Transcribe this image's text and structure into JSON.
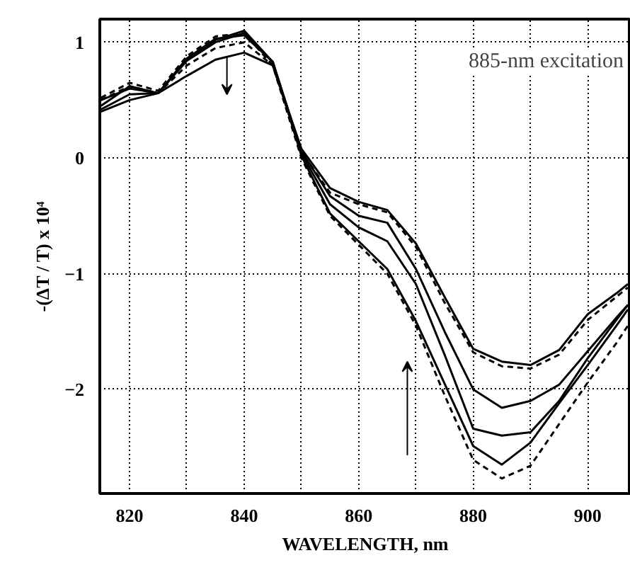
{
  "chart_data": {
    "type": "line",
    "xlabel": "WAVELENGTH, nm",
    "ylabel": "-(ΔT / T) x 10⁴",
    "annotations": [
      "885-nm excitation"
    ],
    "x": [
      815,
      820,
      825,
      830,
      835,
      840,
      845,
      850,
      855,
      860,
      865,
      870,
      875,
      880,
      885,
      890,
      895,
      900,
      905,
      907
    ],
    "series": [
      {
        "color": "#000000",
        "line_style": "solid",
        "values": [
          0.4,
          0.5,
          0.56,
          0.71,
          0.85,
          0.91,
          0.8,
          0.08,
          -0.26,
          -0.38,
          -0.45,
          -0.74,
          -1.2,
          -1.65,
          -1.76,
          -1.79,
          -1.66,
          -1.35,
          -1.17,
          -1.09
        ]
      },
      {
        "color": "#000000",
        "line_style": "solid",
        "values": [
          0.5,
          0.6,
          0.56,
          0.86,
          1.03,
          1.06,
          0.83,
          0.06,
          -0.33,
          -0.5,
          -0.56,
          -0.96,
          -1.5,
          -2.0,
          -2.16,
          -2.1,
          -1.96,
          -1.67,
          -1.38,
          -1.27
        ]
      },
      {
        "color": "#000000",
        "line_style": "solid",
        "values": [
          0.42,
          0.55,
          0.56,
          0.84,
          1.0,
          1.08,
          0.83,
          0.04,
          -0.4,
          -0.6,
          -0.72,
          -1.09,
          -1.7,
          -2.34,
          -2.4,
          -2.37,
          -2.1,
          -1.73,
          -1.4,
          -1.27
        ]
      },
      {
        "color": "#000000",
        "line_style": "solid",
        "values": [
          0.45,
          0.62,
          0.56,
          0.85,
          1.02,
          1.1,
          0.83,
          0.02,
          -0.48,
          -0.72,
          -0.96,
          -1.41,
          -1.95,
          -2.49,
          -2.65,
          -2.46,
          -2.12,
          -1.79,
          -1.45,
          -1.31
        ]
      },
      {
        "color": "#000000",
        "line_style": "dashed",
        "values": [
          0.52,
          0.65,
          0.58,
          0.88,
          1.05,
          1.08,
          0.8,
          0.0,
          -0.5,
          -0.75,
          -1.0,
          -1.45,
          -2.05,
          -2.61,
          -2.77,
          -2.66,
          -2.3,
          -1.94,
          -1.6,
          -1.45
        ]
      },
      {
        "color": "#000000",
        "line_style": "dashed",
        "values": [
          0.5,
          0.62,
          0.56,
          0.8,
          0.95,
          1.0,
          0.8,
          0.05,
          -0.3,
          -0.4,
          -0.47,
          -0.77,
          -1.25,
          -1.68,
          -1.8,
          -1.82,
          -1.7,
          -1.4,
          -1.2,
          -1.12
        ]
      }
    ],
    "xlim": [
      814.8,
      907.5
    ],
    "ylim": [
      -2.9,
      1.2
    ],
    "xticks": [
      820,
      {
        "value": 830,
        "label": null
      },
      840,
      {
        "value": 850,
        "label": null
      },
      860,
      {
        "value": 870,
        "label": null
      },
      880,
      {
        "value": 890,
        "label": null
      },
      900
    ],
    "yticks": [
      -2,
      -1,
      0,
      1
    ],
    "grid": true
  }
}
